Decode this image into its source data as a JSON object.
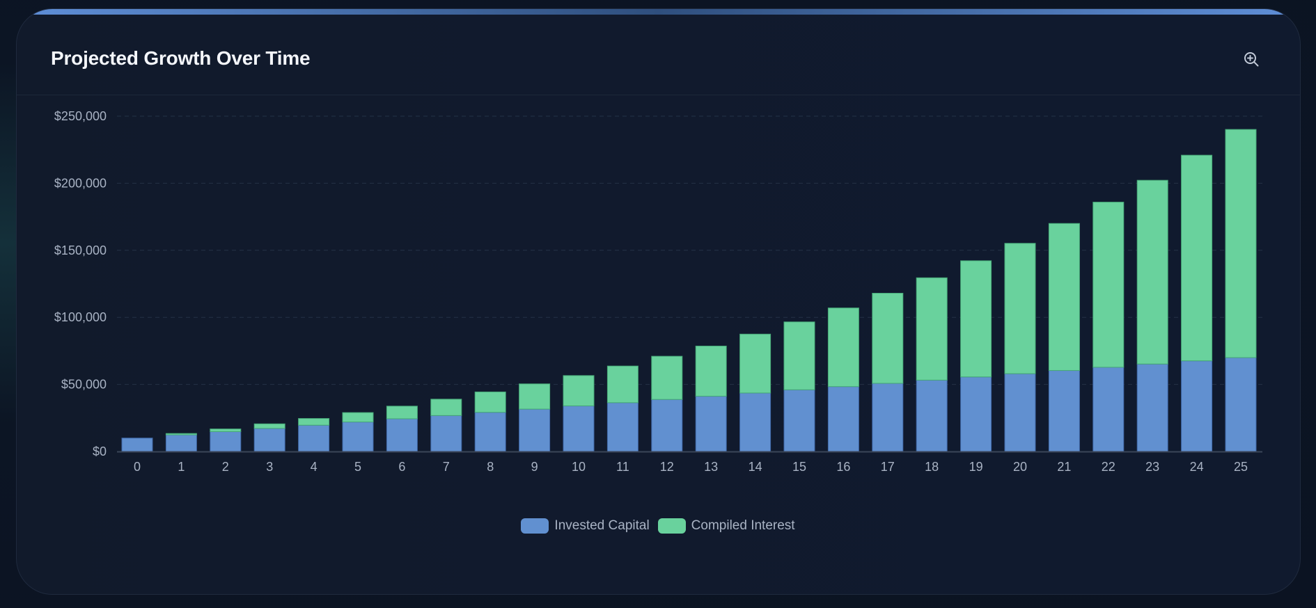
{
  "header": {
    "title": "Projected Growth Over Time"
  },
  "icons": {
    "zoom": "zoom-in-icon"
  },
  "colors": {
    "invested": "#6190d0",
    "interest": "#69d29d",
    "grid": "#243146",
    "tick_text": "#a9b3c4"
  },
  "chart_data": {
    "type": "bar",
    "stacked": true,
    "categories": [
      "0",
      "1",
      "2",
      "3",
      "4",
      "5",
      "6",
      "7",
      "8",
      "9",
      "10",
      "11",
      "12",
      "13",
      "14",
      "15",
      "16",
      "17",
      "18",
      "19",
      "20",
      "21",
      "22",
      "23",
      "24",
      "25"
    ],
    "series": [
      {
        "name": "Invested Capital",
        "values": [
          10000,
          12400,
          14800,
          17200,
          19600,
          22000,
          24400,
          26800,
          29200,
          31600,
          34000,
          36400,
          38800,
          41200,
          43600,
          46000,
          48400,
          50800,
          53200,
          55600,
          58000,
          60400,
          62800,
          65200,
          67600,
          70000
        ]
      },
      {
        "name": "Compiled Interest",
        "values": [
          0,
          1000,
          2000,
          3400,
          5000,
          7000,
          9400,
          12200,
          15200,
          18800,
          22600,
          27300,
          32200,
          37400,
          43900,
          50600,
          58600,
          67200,
          76300,
          86600,
          97200,
          109600,
          123100,
          137000,
          153300,
          170100
        ]
      }
    ],
    "ylim": [
      0,
      250000
    ],
    "yticks": [
      "$0",
      "$50,000",
      "$100,000",
      "$150,000",
      "$200,000",
      "$250,000"
    ],
    "xlabel": "",
    "ylabel": "",
    "grid": true,
    "legend_position": "bottom-center"
  }
}
